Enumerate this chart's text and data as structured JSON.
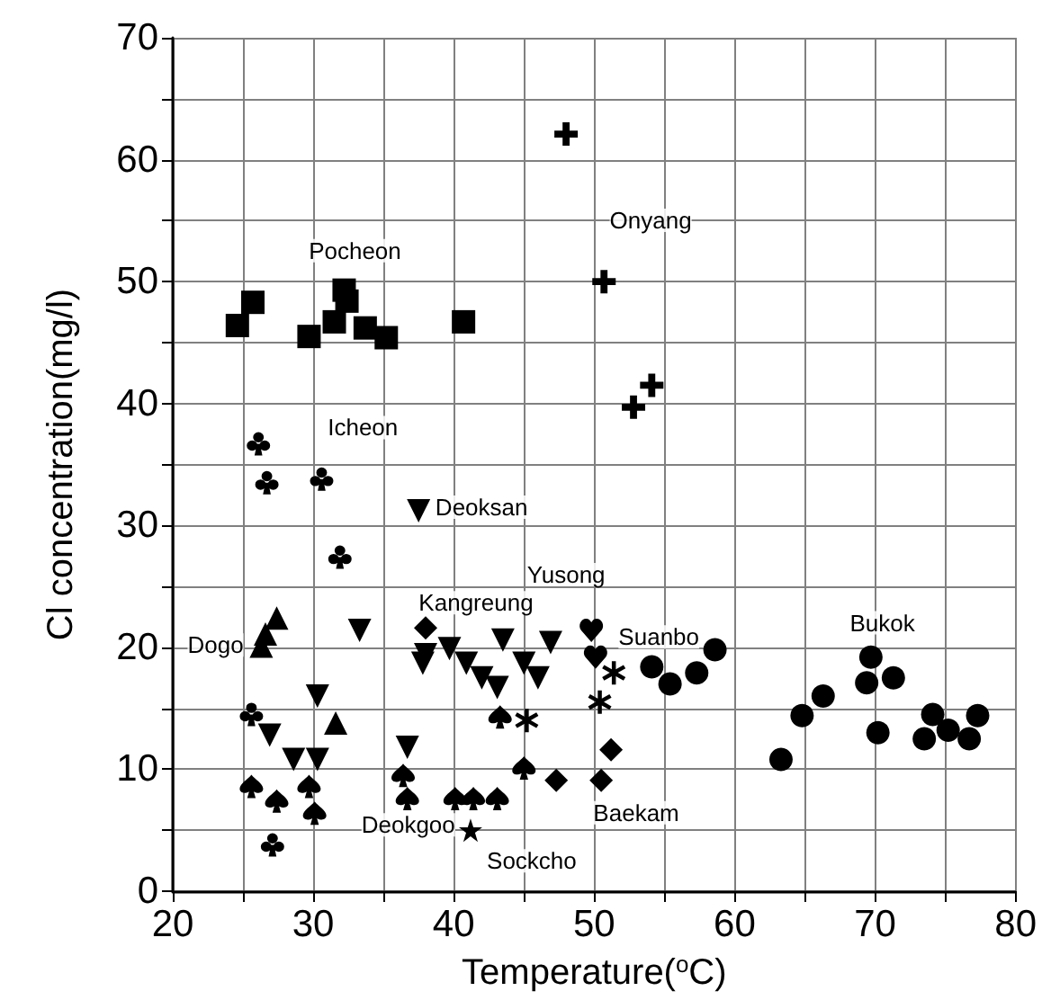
{
  "chart_data": {
    "type": "scatter",
    "xlabel": "Temperature($^{o}$C)",
    "ylabel": "Cl concentration(mg/l)",
    "xlim": [
      20,
      80
    ],
    "xticks": [
      20,
      30,
      40,
      50,
      60,
      70,
      80
    ],
    "ylim": [
      0,
      70
    ],
    "yticks": [
      0,
      10,
      20,
      30,
      40,
      50,
      60,
      70
    ],
    "grid": true,
    "series": [
      {
        "name": "Pocheon",
        "color": "#000000",
        "marker": "square",
        "x": [
          24.6,
          25.7,
          29.7,
          31.5,
          32.2,
          32.4,
          33.7,
          35.2,
          40.7
        ],
        "values": [
          46.4,
          48.3,
          45.5,
          46.7,
          49.3,
          48.4,
          46.2,
          45.4,
          46.7
        ]
      },
      {
        "name": "Onyang",
        "color": "#000000",
        "marker": "cross",
        "x": [
          48.0,
          50.7,
          52.8,
          54.1
        ],
        "values": [
          62.1,
          50.0,
          39.7,
          41.5
        ]
      },
      {
        "name": "Icheon",
        "color": "#000000",
        "x": [
          26.1,
          26.7,
          30.6,
          31.9,
          27.1,
          25.6
        ],
        "values": [
          36.7,
          33.5,
          33.8,
          27.4,
          3.8,
          14.5
        ]
      },
      {
        "name": "Deoksan",
        "color": "#000000",
        "marker": "triangle-down",
        "x": [
          37.5,
          33.3,
          26.9,
          28.6,
          30.3,
          36.7,
          38.0,
          37.8,
          39.7,
          40.9,
          42.0,
          43.5,
          43.1,
          46.9,
          46.0,
          45.0,
          30.3
        ],
        "values": [
          31.2,
          21.4,
          12.8,
          10.8,
          10.8,
          11.8,
          19.4,
          18.7,
          19.9,
          18.7,
          17.5,
          20.6,
          16.7,
          20.4,
          17.5,
          18.7,
          16.0
        ]
      },
      {
        "name": "Dogo",
        "color": "#000000",
        "marker": "triangle",
        "x": [
          27.4,
          26.6,
          26.3,
          31.6
        ],
        "values": [
          22.4,
          21.1,
          20.1,
          13.8
        ]
      },
      {
        "name": "Kangreung",
        "color": "#000000",
        "marker": "diamond",
        "x": [
          38.0
        ],
        "values": [
          21.6
        ]
      },
      {
        "name": "Yusong",
        "color": "#000000",
        "x": [
          49.8,
          50.1
        ],
        "values": [
          21.4,
          19.2
        ]
      },
      {
        "name": "Suanbo",
        "color": "#000000",
        "marker": "asterisk",
        "x": [
          51.4,
          50.4,
          45.2
        ],
        "values": [
          17.9,
          15.5,
          14.0
        ]
      },
      {
        "name": "Deokgoo",
        "color": "#000000",
        "x": [
          25.6,
          27.4,
          29.7,
          30.1,
          36.4,
          36.7,
          40.1,
          41.4,
          43.1,
          43.3,
          45.0
        ],
        "values": [
          8.6,
          7.4,
          8.6,
          6.4,
          9.5,
          7.6,
          7.6,
          7.6,
          7.6,
          14.3,
          10.1
        ]
      },
      {
        "name": "Baekam",
        "color": "#000000",
        "marker": "diamond",
        "x": [
          51.2,
          50.5,
          47.3
        ],
        "values": [
          11.6,
          9.1,
          9.1
        ]
      },
      {
        "name": "Sockcho",
        "color": "#000000",
        "marker": "star",
        "x": [
          41.2
        ],
        "values": [
          5.0
        ]
      },
      {
        "name": "Bukok",
        "color": "#000000",
        "marker": "circle",
        "x": [
          54.1,
          55.4,
          57.3,
          58.6,
          63.3,
          64.8,
          66.3,
          69.7,
          69.4,
          71.3,
          70.2,
          74.1,
          73.5,
          75.2,
          76.7,
          77.3
        ],
        "values": [
          18.4,
          17.0,
          17.9,
          19.8,
          10.8,
          14.4,
          16.0,
          19.2,
          17.1,
          17.5,
          13.0,
          14.5,
          12.5,
          13.2,
          12.5,
          14.4
        ]
      }
    ]
  }
}
